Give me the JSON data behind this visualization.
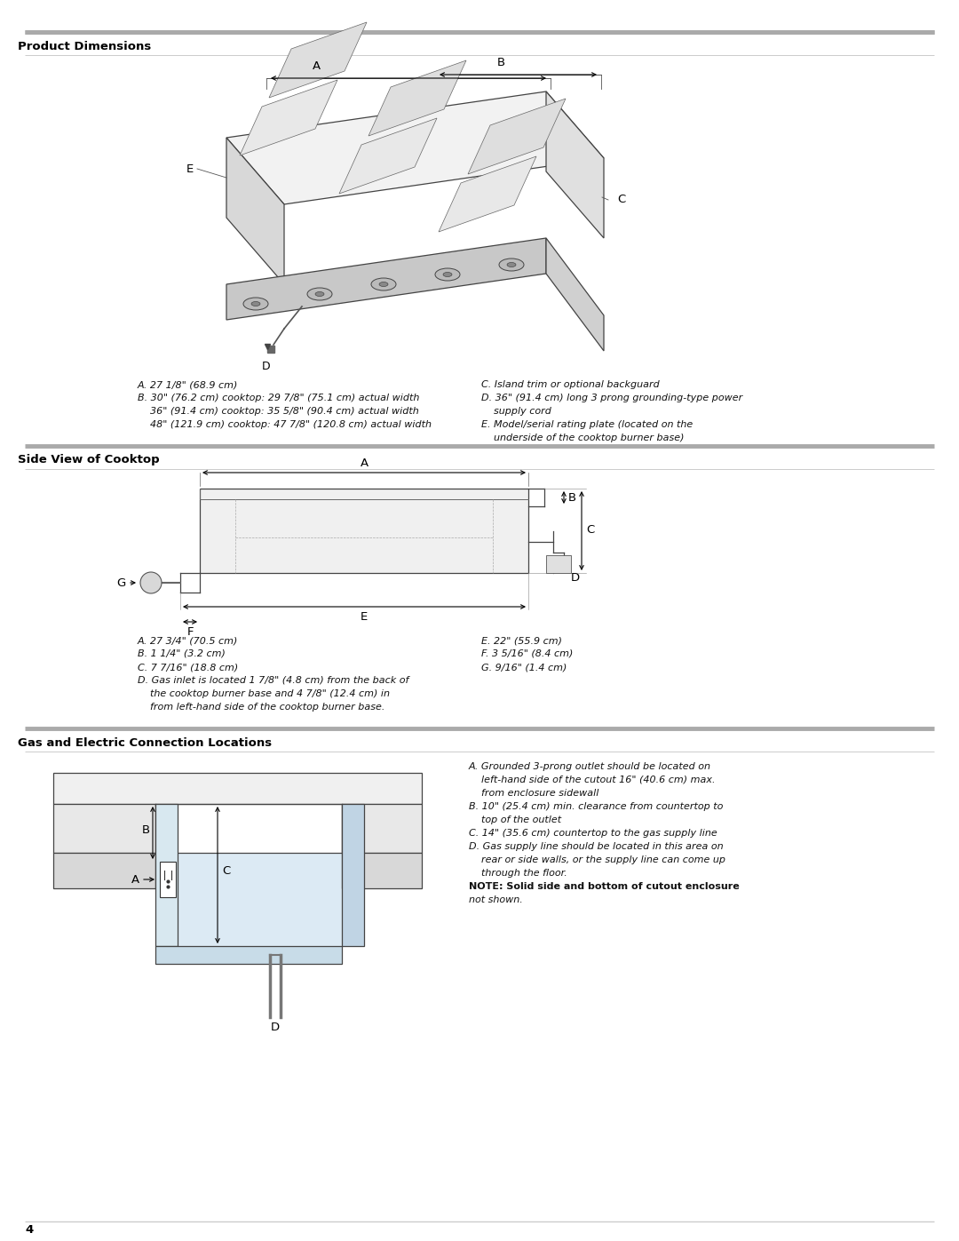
{
  "page_bg": "#ffffff",
  "section1_title": "Product Dimensions",
  "section2_title": "Side View of Cooktop",
  "section3_title": "Gas and Electric Connection Locations",
  "page_number": "4",
  "section1_notes_left": [
    "A. 27 1/8\" (68.9 cm)",
    "B. 30\" (76.2 cm) cooktop: 29 7/8\" (75.1 cm) actual width",
    "    36\" (91.4 cm) cooktop: 35 5/8\" (90.4 cm) actual width",
    "    48\" (121.9 cm) cooktop: 47 7/8\" (120.8 cm) actual width"
  ],
  "section1_notes_right": [
    "C. Island trim or optional backguard",
    "D. 36\" (91.4 cm) long 3 prong grounding-type power",
    "    supply cord",
    "E. Model/serial rating plate (located on the",
    "    underside of the cooktop burner base)"
  ],
  "section2_notes_left": [
    "A. 27 3/4\" (70.5 cm)",
    "B. 1 1/4\" (3.2 cm)",
    "C. 7 7/16\" (18.8 cm)",
    "D. Gas inlet is located 1 7/8\" (4.8 cm) from the back of",
    "    the cooktop burner base and 4 7/8\" (12.4 cm) in",
    "    from left-hand side of the cooktop burner base."
  ],
  "section2_notes_right": [
    "E. 22\" (55.9 cm)",
    "F. 3 5/16\" (8.4 cm)",
    "G. 9/16\" (1.4 cm)"
  ],
  "section3_notes": [
    "A. Grounded 3-prong outlet should be located on",
    "    left-hand side of the cutout 16\" (40.6 cm) max.",
    "    from enclosure sidewall",
    "B. 10\" (25.4 cm) min. clearance from countertop to",
    "    top of the outlet",
    "C. 14\" (35.6 cm) countertop to the gas supply line",
    "D. Gas supply line should be located in this area on",
    "    rear or side walls, or the supply line can come up",
    "    through the floor.",
    "NOTE: Solid side and bottom of cutout enclosure",
    "not shown."
  ],
  "header_line_color": "#999999",
  "section_title_color": "#000000",
  "text_color": "#000000",
  "note_color": "#333333"
}
